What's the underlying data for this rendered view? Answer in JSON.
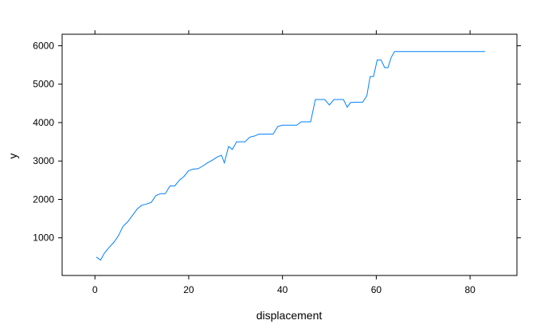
{
  "chart_data": {
    "type": "line",
    "title": "",
    "xlabel": "displacement",
    "ylabel": "y",
    "xlim": [
      -7,
      90
    ],
    "ylim": [
      20,
      6300
    ],
    "xticks": [
      0,
      20,
      40,
      60,
      80
    ],
    "yticks": [
      1000,
      2000,
      3000,
      4000,
      5000,
      6000
    ],
    "grid": false,
    "colors": {
      "line": "#0080ff",
      "frame": "#000000",
      "background": "#ffffff"
    },
    "series": [
      {
        "x": [
          0.3,
          1.2,
          2,
          3,
          4,
          5,
          6,
          7,
          8,
          9,
          10,
          11,
          12,
          13,
          14,
          15,
          16,
          17,
          18,
          19,
          20,
          21,
          22,
          23,
          24,
          25,
          26,
          27,
          27.6,
          28.5,
          29.3,
          30.2,
          31.1,
          32,
          33,
          34,
          35,
          36,
          37,
          38,
          39,
          40,
          41,
          42,
          43,
          44,
          45,
          46,
          47,
          48,
          49,
          50,
          51,
          52,
          53,
          53.8,
          54.5,
          55.3,
          56.2,
          57.1,
          58,
          58.7,
          59.4,
          60.2,
          61,
          61.8,
          62.5,
          63.2,
          63.9,
          64.6,
          70,
          75,
          80,
          83.2
        ],
        "y": [
          500,
          420,
          600,
          750,
          880,
          1050,
          1300,
          1420,
          1580,
          1750,
          1850,
          1880,
          1920,
          2100,
          2150,
          2150,
          2350,
          2350,
          2500,
          2600,
          2750,
          2790,
          2800,
          2870,
          2950,
          3020,
          3100,
          3150,
          2950,
          3380,
          3300,
          3500,
          3500,
          3500,
          3620,
          3650,
          3700,
          3700,
          3700,
          3700,
          3900,
          3930,
          3930,
          3930,
          3930,
          4020,
          4020,
          4020,
          4600,
          4600,
          4600,
          4460,
          4600,
          4600,
          4600,
          4400,
          4520,
          4530,
          4530,
          4530,
          4700,
          5200,
          5200,
          5630,
          5630,
          5430,
          5430,
          5700,
          5850,
          5850,
          5850,
          5850,
          5850,
          5850
        ]
      }
    ]
  }
}
